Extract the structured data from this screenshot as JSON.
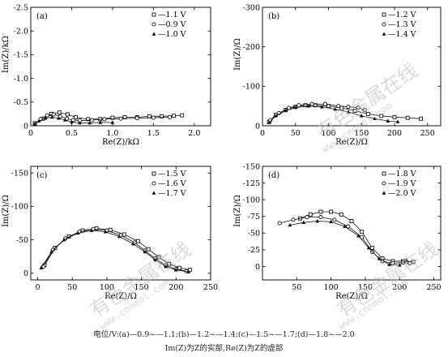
{
  "watermark": {
    "text": "有色金属在线",
    "url": "www.cnnmol.com"
  },
  "caption": {
    "line1": "电位/V:(a)—0.9~—1.1;(b)—1.2~—1.4;(c)—1.5~—1.7;(d)—1.8~—2.0",
    "line2": "Im(Z)为Z的实部,Re(Z)为Z的虚部"
  },
  "chart_data": [
    {
      "panel": "(a)",
      "type": "scatter",
      "xlabel": "Re(Z)/kΩ",
      "ylabel": "Im(Z)/kΩ",
      "xlim": [
        0,
        2.2
      ],
      "ylim": [
        0,
        -2.5
      ],
      "y_inverted": true,
      "xticks": [
        0,
        0.5,
        1.0,
        1.5,
        2.0
      ],
      "xtick_labels": [
        "0",
        "0.5",
        "1.0",
        "1.5",
        "2.0"
      ],
      "yticks": [
        0,
        -0.5,
        -1.0,
        -1.5,
        -2.0,
        -2.5
      ],
      "ytick_labels": [
        "0",
        "-0.5",
        "-1.0",
        "-1.5",
        "-2.0",
        "-2.5"
      ],
      "legend_position": "top-right",
      "series": [
        {
          "name": "—1.1 V",
          "marker": "square",
          "x": [
            0.05,
            0.15,
            0.25,
            0.35,
            0.45,
            0.55,
            0.7,
            0.85,
            1.0,
            1.15,
            1.3,
            1.45,
            1.6,
            1.75,
            1.85
          ],
          "y": [
            -0.05,
            -0.15,
            -0.25,
            -0.28,
            -0.24,
            -0.18,
            -0.14,
            -0.14,
            -0.17,
            -0.18,
            -0.18,
            -0.2,
            -0.2,
            -0.21,
            -0.22
          ]
        },
        {
          "name": "—0.9 V",
          "marker": "circle",
          "x": [
            0.05,
            0.12,
            0.2,
            0.28,
            0.36,
            0.44,
            0.52,
            0.6,
            0.75,
            0.9,
            1.1,
            1.3,
            1.5,
            1.7
          ],
          "y": [
            -0.05,
            -0.14,
            -0.22,
            -0.24,
            -0.2,
            -0.15,
            -0.12,
            -0.11,
            -0.12,
            -0.14,
            -0.15,
            -0.16,
            -0.17,
            -0.18
          ]
        },
        {
          "name": "—1.0 V",
          "marker": "triangle",
          "x": [
            0.05,
            0.1,
            0.18,
            0.26,
            0.34,
            0.42,
            0.5,
            0.6,
            0.72,
            0.85,
            1.0
          ],
          "y": [
            -0.04,
            -0.1,
            -0.16,
            -0.18,
            -0.16,
            -0.12,
            -0.08,
            -0.06,
            -0.06,
            -0.07,
            -0.07
          ]
        }
      ]
    },
    {
      "panel": "(b)",
      "type": "scatter",
      "xlabel": "Re(Z)/Ω",
      "ylabel": "Im(Z)/Ω",
      "xlim": [
        0,
        270
      ],
      "ylim": [
        0,
        -300
      ],
      "y_inverted": true,
      "xticks": [
        0,
        50,
        100,
        150,
        200,
        250
      ],
      "xtick_labels": [
        "0",
        "50",
        "100",
        "150",
        "200",
        "250"
      ],
      "yticks": [
        0,
        -100,
        -200,
        -300
      ],
      "ytick_labels": [
        "0",
        "-100",
        "-200",
        "-300"
      ],
      "legend_position": "top-right",
      "series": [
        {
          "name": "—1.2 V",
          "marker": "square",
          "x": [
            10,
            20,
            35,
            50,
            65,
            80,
            100,
            120,
            140,
            160,
            180,
            200,
            220,
            240
          ],
          "y": [
            -10,
            -28,
            -40,
            -48,
            -52,
            -52,
            -50,
            -45,
            -38,
            -30,
            -25,
            -22,
            -20,
            -18
          ]
        },
        {
          "name": "—1.3 V",
          "marker": "circle",
          "x": [
            12,
            25,
            40,
            55,
            75,
            95,
            115,
            130,
            145,
            155
          ],
          "y": [
            -14,
            -32,
            -45,
            -52,
            -55,
            -55,
            -50,
            -48,
            -46,
            -40
          ]
        },
        {
          "name": "—1.4 V",
          "marker": "triangle",
          "x": [
            10,
            20,
            35,
            50,
            70,
            90,
            110,
            130,
            150,
            170,
            190,
            205
          ],
          "y": [
            -8,
            -25,
            -38,
            -46,
            -50,
            -48,
            -42,
            -35,
            -25,
            -18,
            -12,
            -10
          ]
        }
      ]
    },
    {
      "panel": "(c)",
      "type": "scatter",
      "xlabel": "Re(Z)/Ω",
      "ylabel": "Im(Z)/Ω",
      "xlim": [
        -10,
        250
      ],
      "ylim": [
        10,
        -160
      ],
      "y_inverted": true,
      "xticks": [
        0,
        50,
        100,
        150,
        200,
        250
      ],
      "xtick_labels": [
        "0",
        "50",
        "100",
        "150",
        "200",
        "250"
      ],
      "yticks": [
        0,
        -50,
        -100,
        -150
      ],
      "ytick_labels": [
        "0",
        "-50",
        "-100",
        "-150"
      ],
      "legend_position": "top-right",
      "series": [
        {
          "name": "—1.5 V",
          "marker": "square",
          "x": [
            10,
            25,
            45,
            65,
            85,
            105,
            125,
            145,
            160,
            175,
            190,
            205,
            220
          ],
          "y": [
            -12,
            -38,
            -55,
            -64,
            -67,
            -65,
            -58,
            -48,
            -36,
            -24,
            -14,
            -8,
            -5
          ]
        },
        {
          "name": "—1.6 V",
          "marker": "circle",
          "x": [
            8,
            22,
            40,
            60,
            80,
            100,
            120,
            140,
            155,
            170,
            185,
            200,
            215
          ],
          "y": [
            -10,
            -35,
            -52,
            -62,
            -66,
            -64,
            -57,
            -46,
            -34,
            -22,
            -12,
            -6,
            -3
          ]
        },
        {
          "name": "—1.7 V",
          "marker": "triangle",
          "x": [
            5,
            20,
            38,
            58,
            78,
            98,
            118,
            138,
            155,
            170,
            185,
            200,
            218
          ],
          "y": [
            -8,
            -32,
            -50,
            -60,
            -64,
            -62,
            -55,
            -44,
            -32,
            -20,
            -10,
            -5,
            -2
          ]
        }
      ]
    },
    {
      "panel": "(d)",
      "type": "scatter",
      "xlabel": "Re(Z)/Ω",
      "ylabel": "Im(Z)/Ω",
      "xlim": [
        0,
        260
      ],
      "ylim": [
        20,
        -150
      ],
      "y_inverted": true,
      "xticks": [
        50,
        100,
        150,
        200,
        250
      ],
      "xtick_labels": [
        "50",
        "100",
        "150",
        "200",
        "250"
      ],
      "yticks": [
        0,
        -25,
        -50,
        -75,
        -100,
        -125,
        -150
      ],
      "ytick_labels": [
        "0",
        "-25",
        "-50",
        "-75",
        "-100",
        "-125",
        "-150"
      ],
      "legend_position": "top-right",
      "series": [
        {
          "name": "—1.8 V",
          "marker": "square",
          "x": [
            55,
            70,
            85,
            100,
            115,
            130,
            145,
            160,
            175,
            190,
            205,
            220
          ],
          "y": [
            -72,
            -78,
            -82,
            -82,
            -78,
            -68,
            -52,
            -28,
            -12,
            -8,
            -8,
            -7
          ]
        },
        {
          "name": "—1.9 V",
          "marker": "circle",
          "x": [
            25,
            45,
            65,
            85,
            105,
            125,
            145,
            160,
            175,
            190,
            205,
            215
          ],
          "y": [
            -65,
            -70,
            -74,
            -74,
            -70,
            -60,
            -44,
            -22,
            -8,
            -5,
            -6,
            -5
          ]
        },
        {
          "name": "—2.0 V",
          "marker": "triangle",
          "x": [
            40,
            60,
            80,
            100,
            120,
            140,
            155,
            170,
            185,
            200,
            210
          ],
          "y": [
            -62,
            -66,
            -68,
            -67,
            -60,
            -46,
            -28,
            -12,
            -3,
            -2,
            -10
          ]
        }
      ]
    }
  ]
}
